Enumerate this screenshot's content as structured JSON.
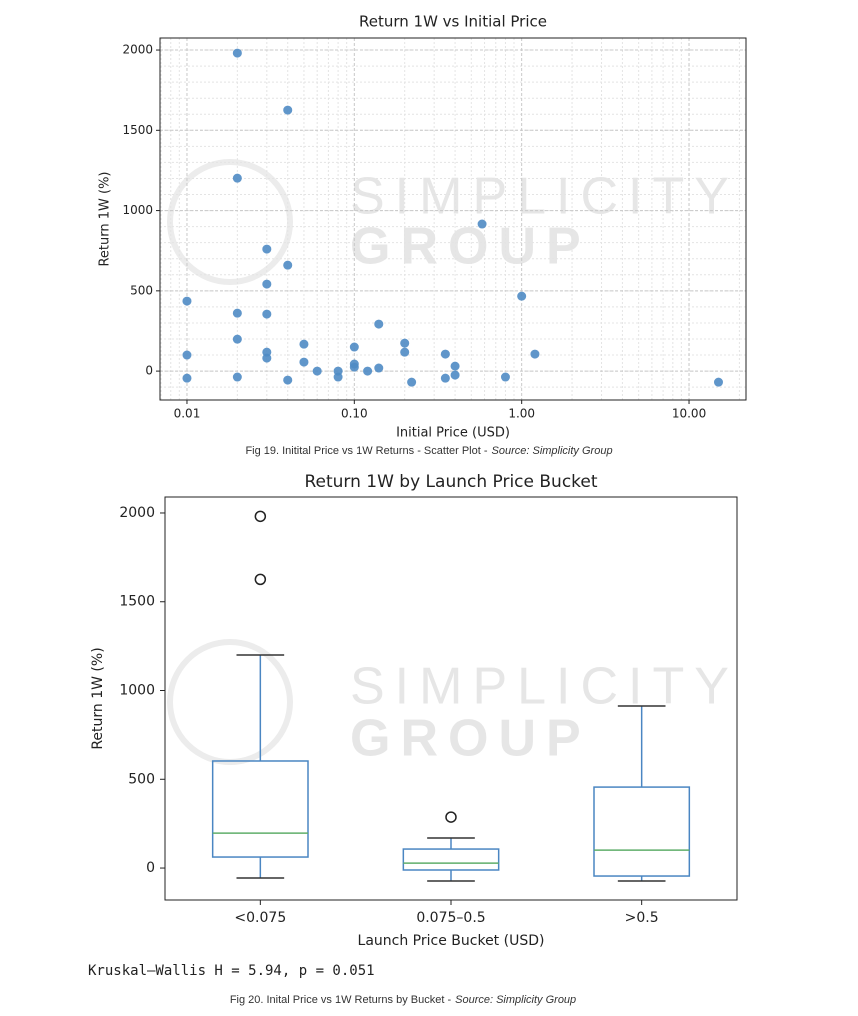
{
  "chart_data": [
    {
      "type": "scatter",
      "title": "Return 1W vs Initial Price",
      "xlabel": "Initial Price (USD)",
      "ylabel": "Return 1W (%)",
      "xscale": "log",
      "grid": true,
      "color": "#4f8bc4",
      "xlim": [
        0.0069,
        21.9
      ],
      "ylim": [
        -180,
        2075
      ],
      "xticks": [
        0.01,
        {
          "value": 0.1,
          "label": "0.10"
        },
        {
          "value": 1,
          "label": "1.00"
        },
        {
          "value": 10,
          "label": "10.00"
        }
      ],
      "yticks": [
        0,
        500,
        1000,
        1500,
        2000
      ],
      "x": [
        0.02,
        0.04,
        0.02,
        0.01,
        0.01,
        0.01,
        0.02,
        0.02,
        0.02,
        0.03,
        0.03,
        0.03,
        0.03,
        0.03,
        0.04,
        0.04,
        0.05,
        0.05,
        0.06,
        0.08,
        0.08,
        0.1,
        0.1,
        0.1,
        0.12,
        0.14,
        0.14,
        0.2,
        0.2,
        0.22,
        0.35,
        0.35,
        0.4,
        0.4,
        0.8,
        0.58,
        1.0,
        1.2,
        15
      ],
      "values": [
        1981,
        1626,
        1202,
        436,
        100,
        -44,
        361,
        199,
        -37,
        760,
        542,
        355,
        118,
        81,
        660,
        -56,
        168,
        56,
        0,
        0,
        -37,
        150,
        44,
        25,
        0,
        19,
        293,
        174,
        118,
        -69,
        106,
        -44,
        31,
        -25,
        -37,
        916,
        467,
        106,
        -69
      ]
    },
    {
      "type": "box",
      "title": "Return 1W by Launch Price Bucket",
      "xlabel": "Launch Price Bucket (USD)",
      "ylabel": "Return 1W (%)",
      "color": "#4a86c2",
      "median_color": "#5fae6a",
      "ylim": [
        -180,
        2090
      ],
      "yticks": [
        0,
        500,
        1000,
        1500,
        2000
      ],
      "categories": [
        "<0.075",
        "0.075–0.5",
        ">0.5"
      ],
      "boxes": [
        {
          "whislo": -56,
          "q1": 62,
          "med": 197,
          "q3": 603,
          "whishi": 1200,
          "fliers": [
            1981,
            1626
          ]
        },
        {
          "whislo": -73,
          "q1": -11,
          "med": 28,
          "q3": 107,
          "whishi": 169,
          "fliers": [
            287
          ]
        },
        {
          "whislo": -73,
          "q1": -45,
          "med": 101,
          "q3": 456,
          "whishi": 913,
          "fliers": []
        }
      ]
    }
  ],
  "watermark": [
    "SIMPLICITY",
    "GROUP"
  ],
  "stat_text": "Kruskal–Wallis H = 5.94, p = 0.051",
  "captions": [
    {
      "text": "Fig 19. Initital Price vs 1W Returns - Scatter Plot -",
      "source": "Source: Simplicity Group"
    },
    {
      "text": "Fig 20. Inital Price  vs 1W Returns by Bucket -",
      "source": "Source: Simplicity Group"
    }
  ]
}
